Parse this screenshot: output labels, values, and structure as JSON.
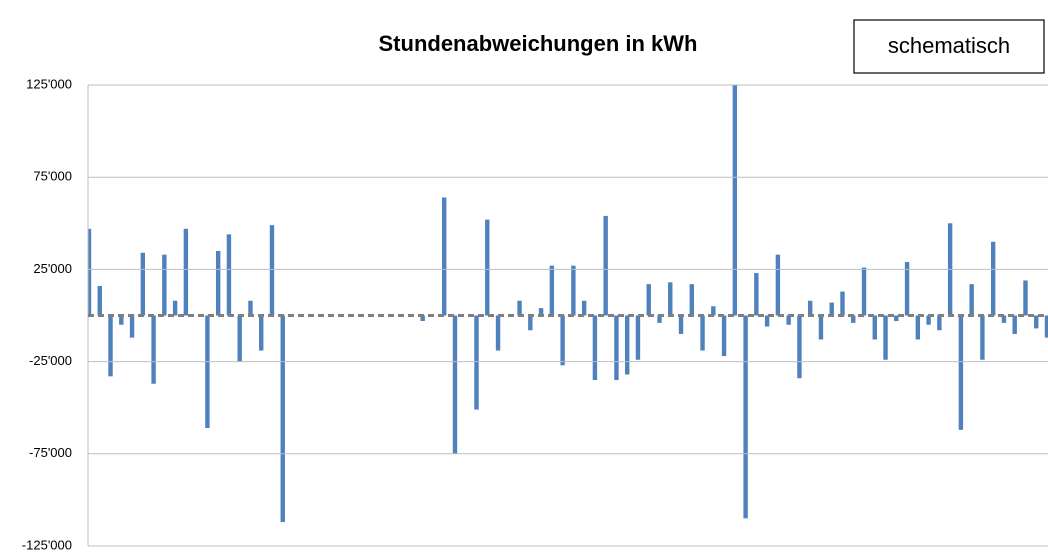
{
  "chart_data": {
    "type": "bar",
    "title": "Stundenabweichungen in kWh",
    "annotation": "schematisch",
    "color": "#4f81bd",
    "grid": true,
    "values": [
      47000,
      16000,
      -33000,
      -5000,
      -12000,
      34000,
      -37000,
      33000,
      8000,
      47000,
      0,
      -61000,
      35000,
      44000,
      -25000,
      8000,
      -19000,
      49000,
      -112000,
      0,
      0,
      0,
      0,
      0,
      0,
      0,
      0,
      0,
      0,
      0,
      0,
      -3000,
      0,
      64000,
      -75000,
      0,
      -51000,
      52000,
      -19000,
      0,
      8000,
      -8000,
      4000,
      27000,
      -27000,
      27000,
      8000,
      -35000,
      54000,
      -35000,
      -32000,
      -24000,
      17000,
      -4000,
      18000,
      -10000,
      17000,
      -19000,
      5000,
      -22000,
      125000,
      -110000,
      23000,
      -6000,
      33000,
      -5000,
      -34000,
      8000,
      -13000,
      7000,
      13000,
      -4000,
      26000,
      -13000,
      -24000,
      -3000,
      29000,
      -13000,
      -5000,
      -8000,
      50000,
      -62000,
      17000,
      -24000,
      40000,
      -4000,
      -10000,
      19000,
      -7000,
      -12000
    ],
    "ylim": [
      -125000,
      125000
    ],
    "yticks": [
      {
        "value": -125000,
        "label": "-125'000"
      },
      {
        "value": -75000,
        "label": "-75'000"
      },
      {
        "value": -25000,
        "label": "-25'000"
      },
      {
        "value": 25000,
        "label": "25'000"
      },
      {
        "value": 75000,
        "label": "75'000"
      },
      {
        "value": 125000,
        "label": "125'000"
      }
    ]
  }
}
